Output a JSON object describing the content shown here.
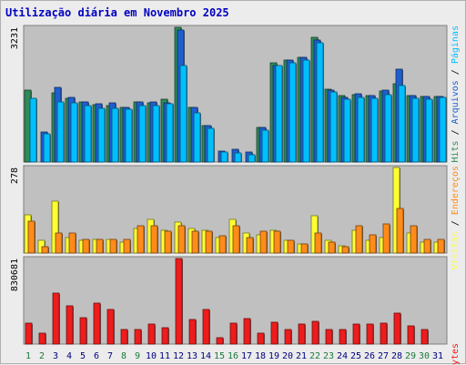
{
  "title": "Utilização diária em Novembro 2025",
  "colors": {
    "hits": "#2e8b57",
    "arquivos": "#1e5fd0",
    "paginas": "#00bfff",
    "visitas": "#ffff33",
    "enderecos": "#ff8c1a",
    "kbytes": "#ee1c1c",
    "day_weekend": "#1a7a3a",
    "day_weekday": "#000080",
    "panel_bg": "#c0c0c0"
  },
  "chart_data": [
    {
      "type": "bar",
      "panel": "top",
      "y_max_label": "3231",
      "ylim": [
        0,
        3231
      ],
      "categories": [
        "1",
        "2",
        "3",
        "4",
        "5",
        "6",
        "7",
        "8",
        "9",
        "10",
        "11",
        "12",
        "13",
        "14",
        "15",
        "16",
        "17",
        "18",
        "19",
        "20",
        "21",
        "22",
        "23",
        "24",
        "25",
        "26",
        "27",
        "28",
        "29",
        "30",
        "31"
      ],
      "legend": [
        {
          "key": "hits",
          "label": "Hits"
        },
        {
          "key": "arquivos",
          "label": "Arquivos"
        },
        {
          "key": "paginas",
          "label": "Páginas"
        }
      ],
      "series": [
        {
          "name": "Hits",
          "key": "hits",
          "values": [
            1720,
            0,
            1660,
            1520,
            1440,
            1380,
            1350,
            1300,
            1440,
            1410,
            1500,
            3231,
            1300,
            880,
            0,
            0,
            0,
            820,
            2370,
            2450,
            2510,
            2980,
            1740,
            1600,
            1620,
            1590,
            1700,
            1870,
            1600,
            1570,
            1580
          ]
        },
        {
          "name": "Arquivos",
          "key": "arquivos",
          "values": [
            0,
            710,
            1790,
            1560,
            1440,
            1390,
            1420,
            1300,
            1440,
            1450,
            1420,
            3170,
            1300,
            880,
            270,
            300,
            230,
            840,
            2320,
            2450,
            2510,
            2930,
            1720,
            1560,
            1630,
            1590,
            1720,
            2220,
            1600,
            1570,
            1580
          ]
        },
        {
          "name": "Páginas",
          "key": "paginas",
          "values": [
            1530,
            670,
            1440,
            1420,
            1350,
            1290,
            1290,
            1260,
            1360,
            1360,
            1400,
            2310,
            1170,
            810,
            230,
            210,
            180,
            770,
            2310,
            2390,
            2450,
            2850,
            1690,
            1510,
            1560,
            1530,
            1610,
            1840,
            1530,
            1500,
            1540
          ]
        }
      ]
    },
    {
      "type": "bar",
      "panel": "middle",
      "y_max_label": "278",
      "ylim": [
        0,
        278
      ],
      "categories": [
        "1",
        "2",
        "3",
        "4",
        "5",
        "6",
        "7",
        "8",
        "9",
        "10",
        "11",
        "12",
        "13",
        "14",
        "15",
        "16",
        "17",
        "18",
        "19",
        "20",
        "21",
        "22",
        "23",
        "24",
        "25",
        "26",
        "27",
        "28",
        "29",
        "30",
        "31"
      ],
      "legend": [
        {
          "key": "visitas",
          "label": "Visitas"
        },
        {
          "key": "enderecos",
          "label": "Endereços"
        }
      ],
      "series": [
        {
          "name": "Visitas",
          "key": "visitas",
          "values": [
            125,
            40,
            170,
            50,
            40,
            45,
            45,
            35,
            80,
            110,
            75,
            100,
            80,
            75,
            50,
            110,
            65,
            60,
            75,
            40,
            30,
            120,
            40,
            25,
            75,
            40,
            50,
            278,
            65,
            35,
            35
          ]
        },
        {
          "name": "Endereços",
          "key": "enderecos",
          "values": [
            103,
            22,
            65,
            65,
            45,
            45,
            45,
            45,
            90,
            90,
            70,
            90,
            70,
            70,
            55,
            90,
            50,
            70,
            70,
            40,
            30,
            65,
            35,
            20,
            90,
            60,
            95,
            145,
            90,
            45,
            45
          ]
        }
      ]
    },
    {
      "type": "bar",
      "panel": "bottom",
      "y_max_label": "830681",
      "ylim": [
        0,
        830681
      ],
      "categories": [
        "1",
        "2",
        "3",
        "4",
        "5",
        "6",
        "7",
        "8",
        "9",
        "10",
        "11",
        "12",
        "13",
        "14",
        "15",
        "16",
        "17",
        "18",
        "19",
        "20",
        "21",
        "22",
        "23",
        "24",
        "25",
        "26",
        "27",
        "28",
        "29",
        "30",
        "31"
      ],
      "legend": [
        {
          "key": "kbytes",
          "label": "KBytes"
        }
      ],
      "series": [
        {
          "name": "KBytes",
          "key": "kbytes",
          "values": [
            200000,
            110000,
            495000,
            370000,
            260000,
            395000,
            340000,
            140000,
            140000,
            190000,
            160000,
            830681,
            240000,
            340000,
            60000,
            200000,
            250000,
            110000,
            215000,
            140000,
            195000,
            225000,
            140000,
            140000,
            190000,
            190000,
            200000,
            300000,
            175000,
            140000,
            0
          ]
        }
      ]
    }
  ],
  "weekend_days": [
    1,
    2,
    8,
    9,
    15,
    16,
    22,
    23,
    29,
    30
  ]
}
